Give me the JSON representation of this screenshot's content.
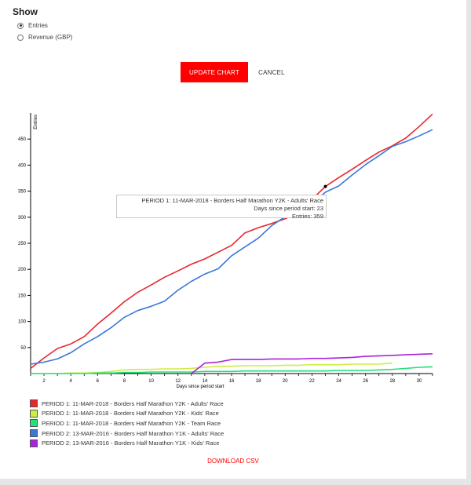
{
  "controls": {
    "show_title": "Show",
    "options": [
      {
        "label": "Entries",
        "checked": true
      },
      {
        "label": "Revenue (GBP)",
        "checked": false
      }
    ],
    "update_label": "UPDATE CHART",
    "cancel_label": "CANCEL",
    "accent_color": "#ff0000"
  },
  "tooltip": {
    "line1": "PERIOD 1: 11-MAR-2018 - Borders Half Marathon Y2K - Adults' Race",
    "line2": "Days since period start: 23",
    "line3": "Entries: 359",
    "point": {
      "x": 23,
      "y": 359
    }
  },
  "download_label": "DOWNLOAD CSV",
  "chart_data": {
    "type": "line",
    "xlabel": "Days since period start",
    "ylabel": "Entries",
    "xlim": [
      1,
      31
    ],
    "ylim": [
      0,
      500
    ],
    "xticks": [
      "2",
      "4",
      "6",
      "8",
      "10",
      "12",
      "14",
      "16",
      "18",
      "20",
      "22",
      "24",
      "26",
      "28",
      "30"
    ],
    "yticks": [
      "50",
      "100",
      "150",
      "200",
      "250",
      "300",
      "350",
      "400",
      "450"
    ],
    "grid": false,
    "legend_position": "bottom-left",
    "series": [
      {
        "name": "PERIOD 1: 11-MAR-2018 - Borders Half Marathon Y2K - Adults' Race",
        "color": "#e8262e",
        "x": [
          1,
          2,
          3,
          4,
          5,
          6,
          7,
          8,
          9,
          10,
          11,
          12,
          13,
          14,
          15,
          16,
          17,
          18,
          19,
          20,
          21,
          22,
          23,
          24,
          25,
          26,
          27,
          28,
          29,
          30,
          31
        ],
        "values": [
          10,
          30,
          48,
          57,
          71,
          95,
          116,
          138,
          156,
          170,
          185,
          197,
          210,
          220,
          233,
          246,
          270,
          280,
          288,
          297,
          309,
          334,
          359,
          376,
          392,
          409,
          425,
          437,
          452,
          474,
          498
        ]
      },
      {
        "name": "PERIOD 1: 11-MAR-2018 - Borders Half Marathon Y2K - Kids' Race",
        "color": "#ccee44",
        "x": [
          1,
          2,
          3,
          4,
          5,
          6,
          7,
          8,
          9,
          10,
          11,
          12,
          13,
          14,
          15,
          16,
          17,
          18,
          19,
          20,
          21,
          22,
          23,
          24,
          25,
          26,
          27,
          28
        ],
        "values": [
          0,
          0,
          0,
          1,
          1,
          2,
          4,
          7,
          8,
          8,
          9,
          9,
          10,
          12,
          14,
          14,
          15,
          15,
          15,
          16,
          16,
          17,
          17,
          17,
          18,
          18,
          18,
          20
        ]
      },
      {
        "name": "PERIOD 1: 11-MAR-2018 - Borders Half Marathon Y2K - Team Race",
        "color": "#22e07a",
        "x": [
          1,
          2,
          3,
          4,
          5,
          6,
          7,
          8,
          9,
          10,
          11,
          12,
          13,
          14,
          15,
          16,
          17,
          18,
          19,
          20,
          21,
          22,
          23,
          24,
          25,
          26,
          27,
          28,
          29,
          30,
          31
        ],
        "values": [
          0,
          0,
          0,
          0,
          0,
          1,
          1,
          2,
          2,
          3,
          3,
          3,
          3,
          4,
          4,
          4,
          5,
          5,
          5,
          5,
          5,
          5,
          5,
          6,
          6,
          6,
          7,
          8,
          10,
          12,
          13
        ]
      },
      {
        "name": "PERIOD 2: 13-MAR-2016 - Borders Half Marathon Y1K - Adults' Race",
        "color": "#3a78d8",
        "x": [
          1,
          2,
          3,
          4,
          5,
          6,
          7,
          8,
          9,
          10,
          11,
          12,
          13,
          14,
          15,
          16,
          17,
          18,
          19,
          20,
          21,
          22,
          23,
          24,
          25,
          26,
          27,
          28,
          29,
          30,
          31
        ],
        "values": [
          18,
          22,
          28,
          40,
          57,
          71,
          88,
          108,
          121,
          129,
          139,
          160,
          177,
          191,
          201,
          226,
          243,
          260,
          284,
          301,
          317,
          325,
          348,
          360,
          381,
          401,
          418,
          436,
          445,
          456,
          468
        ]
      },
      {
        "name": "PERIOD 2: 13-MAR-2016 - Borders Half Marathon Y1K - Kids' Race",
        "color": "#aa22dd",
        "x": [
          13,
          14,
          15,
          16,
          17,
          18,
          19,
          20,
          21,
          22,
          23,
          24,
          25,
          26,
          27,
          28,
          29,
          30,
          31
        ],
        "values": [
          0,
          20,
          22,
          27,
          27,
          27,
          28,
          28,
          28,
          29,
          29,
          30,
          31,
          33,
          34,
          35,
          36,
          37,
          38
        ]
      }
    ]
  }
}
